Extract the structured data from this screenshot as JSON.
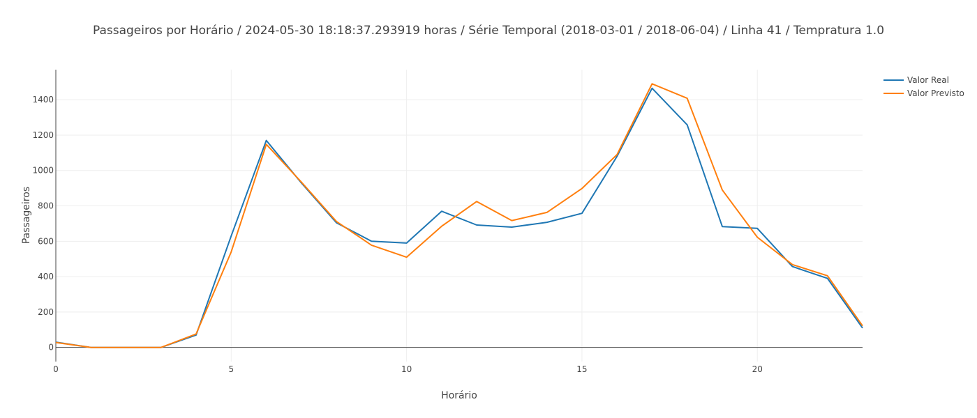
{
  "chart_data": {
    "type": "line",
    "title": "Passageiros por Horário / 2024-05-30 18:18:37.293919 horas / Série Temporal (2018-03-01 / 2018-06-04) / Linha 41 / Tempratura 1.0",
    "xlabel": "Horário",
    "ylabel": "Passageiros",
    "xlim": [
      0,
      23
    ],
    "ylim": [
      -80,
      1570
    ],
    "x_ticks": [
      0,
      5,
      10,
      15,
      20
    ],
    "y_ticks": [
      0,
      200,
      400,
      600,
      800,
      1000,
      1200,
      1400
    ],
    "grid": true,
    "legend_position": "top-right",
    "x": [
      0,
      1,
      2,
      3,
      4,
      5,
      6,
      7,
      8,
      9,
      10,
      11,
      12,
      13,
      14,
      15,
      16,
      17,
      18,
      19,
      20,
      21,
      22,
      23
    ],
    "series": [
      {
        "name": "Valor Real",
        "color": "#1f77b4",
        "values": [
          30,
          0,
          0,
          0,
          70,
          630,
          1170,
          930,
          705,
          600,
          590,
          770,
          692,
          680,
          707,
          758,
          1080,
          1465,
          1258,
          683,
          673,
          457,
          390,
          110
        ]
      },
      {
        "name": "Valor Previsto",
        "color": "#ff7f0e",
        "values": [
          28,
          0,
          0,
          0,
          76,
          540,
          1148,
          935,
          712,
          578,
          510,
          685,
          825,
          717,
          763,
          898,
          1090,
          1490,
          1408,
          890,
          623,
          468,
          405,
          122
        ]
      }
    ]
  }
}
